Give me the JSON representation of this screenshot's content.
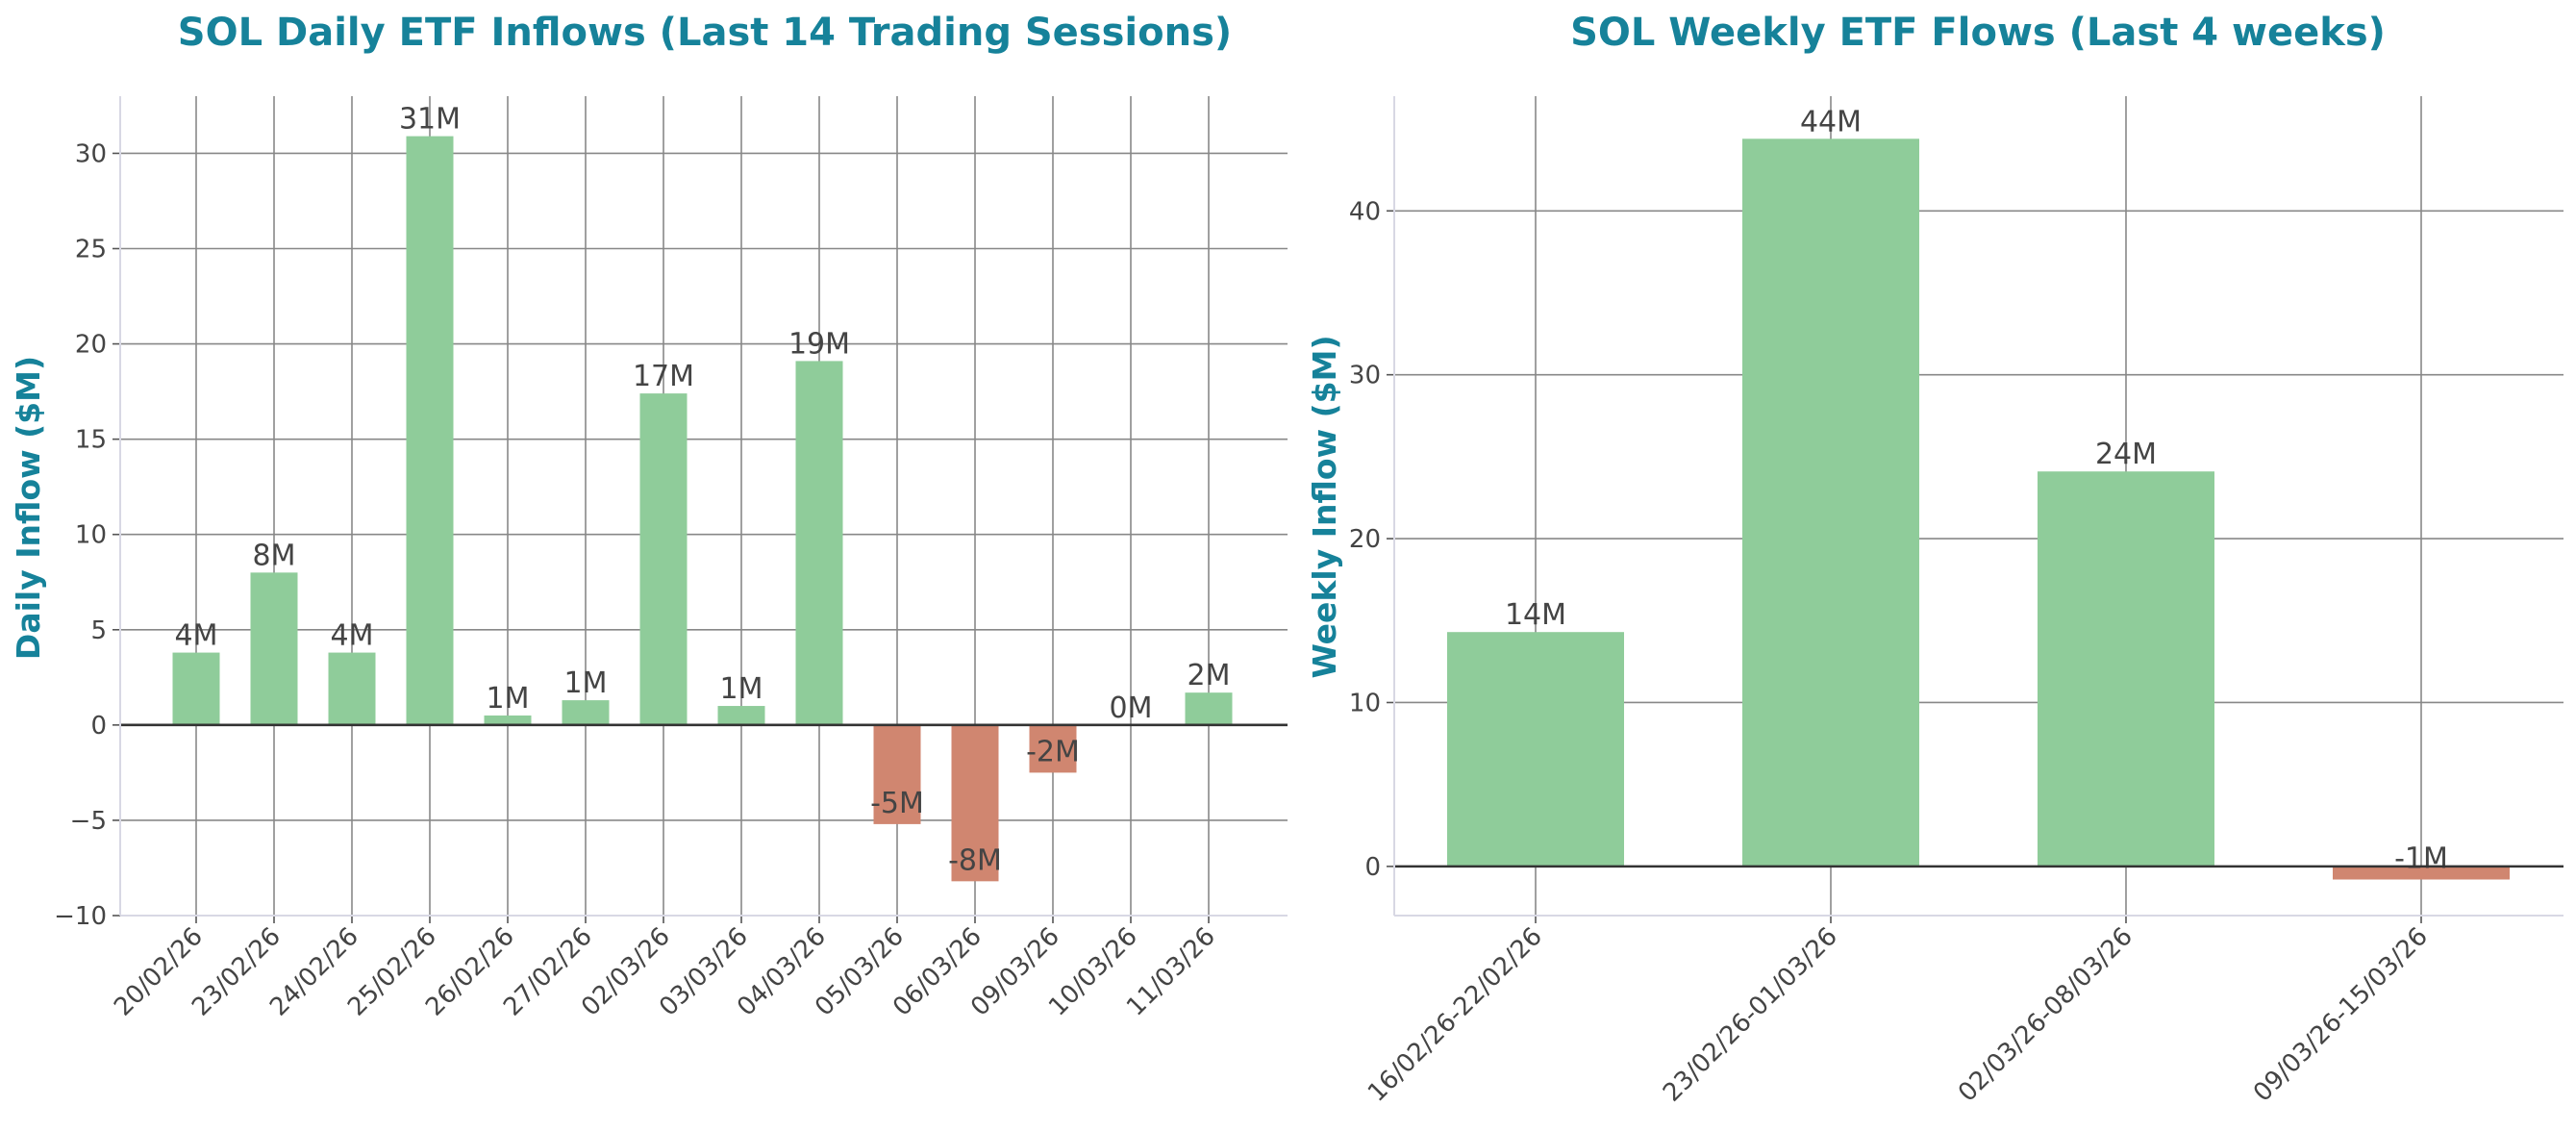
{
  "colors": {
    "positive": "#8fcc9a",
    "negative": "#d08670",
    "title": "#16829a",
    "text": "#444444"
  },
  "chart_data": [
    {
      "type": "bar",
      "title": "SOL Daily ETF Inflows (Last 14 Trading Sessions)",
      "xlabel": "",
      "ylabel": "Daily Inflow ($M)",
      "ylim": [
        -10,
        33
      ],
      "yticks": [
        -10,
        -5,
        0,
        5,
        10,
        15,
        20,
        25,
        30
      ],
      "ytick_labels": [
        "−10",
        "−5",
        "0",
        "5",
        "10",
        "15",
        "20",
        "25",
        "30"
      ],
      "grid": true,
      "categories": [
        "20/02/26",
        "23/02/26",
        "24/02/26",
        "25/02/26",
        "26/02/26",
        "27/02/26",
        "02/03/26",
        "03/03/26",
        "04/03/26",
        "05/03/26",
        "06/03/26",
        "09/03/26",
        "10/03/26",
        "11/03/26"
      ],
      "values": [
        3.8,
        8.0,
        3.8,
        30.9,
        0.5,
        1.3,
        17.4,
        1.0,
        19.1,
        -5.2,
        -8.2,
        -2.5,
        0.0,
        1.7
      ],
      "labels": [
        "4M",
        "8M",
        "4M",
        "31M",
        "1M",
        "1M",
        "17M",
        "1M",
        "19M",
        "-5M",
        "-8M",
        "-2M",
        "0M",
        "2M"
      ]
    },
    {
      "type": "bar",
      "title": "SOL Weekly ETF Flows (Last 4 weeks)",
      "xlabel": "",
      "ylabel": "Weekly Inflow ($M)",
      "ylim": [
        -3,
        47
      ],
      "yticks": [
        0,
        10,
        20,
        30,
        40
      ],
      "ytick_labels": [
        "0",
        "10",
        "20",
        "30",
        "40"
      ],
      "grid": true,
      "categories": [
        "16/02/26-22/02/26",
        "23/02/26-01/03/26",
        "02/03/26-08/03/26",
        "09/03/26-15/03/26"
      ],
      "values": [
        14.3,
        44.4,
        24.1,
        -0.8
      ],
      "labels": [
        "14M",
        "44M",
        "24M",
        "-1M"
      ]
    }
  ]
}
